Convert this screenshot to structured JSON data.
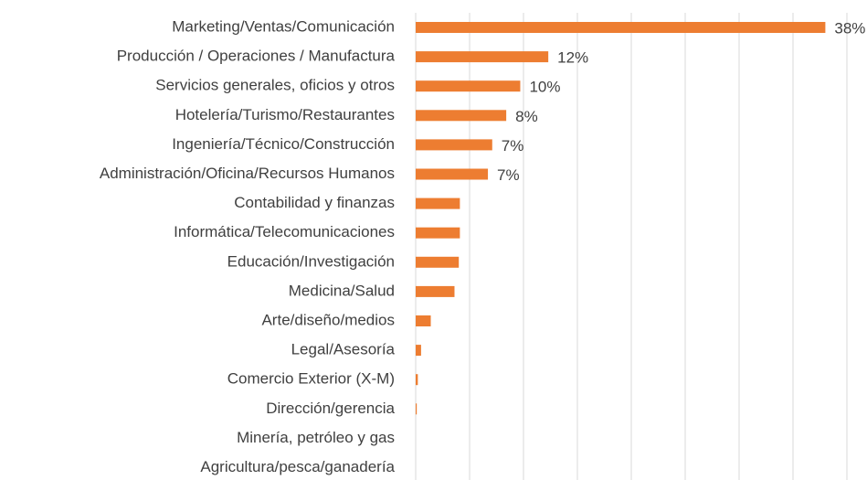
{
  "chart_data": {
    "type": "bar",
    "orientation": "horizontal",
    "categories": [
      "Marketing/Ventas/Comunicación",
      "Producción / Operaciones / Manufactura",
      "Servicios generales, oficios y otros",
      "Hotelería/Turismo/Restaurantes",
      "Ingeniería/Técnico/Construcción",
      "Administración/Oficina/Recursos Humanos",
      "Contabilidad y finanzas",
      "Informática/Telecomunicaciones",
      "Educación/Investigación",
      "Medicina/Salud",
      "Arte/diseño/medios",
      "Legal/Asesoría",
      "Comercio Exterior (X-M)",
      "Dirección/gerencia",
      "Minería, petróleo y gas",
      "Agricultura/pesca/ganadería"
    ],
    "values": [
      38,
      12.3,
      9.7,
      8.4,
      7.1,
      6.7,
      4.1,
      4.1,
      4.0,
      3.6,
      1.4,
      0.5,
      0.2,
      0.1,
      0,
      0
    ],
    "value_labels": [
      "38%",
      "12%",
      "10%",
      "8%",
      "7%",
      "7%",
      null,
      null,
      null,
      null,
      null,
      null,
      null,
      null,
      null,
      null
    ],
    "color": "#ed7d31",
    "xlim": [
      0,
      40
    ],
    "xticks": [
      0,
      5,
      10,
      15,
      20,
      25,
      30,
      35,
      40
    ],
    "grid": true
  }
}
